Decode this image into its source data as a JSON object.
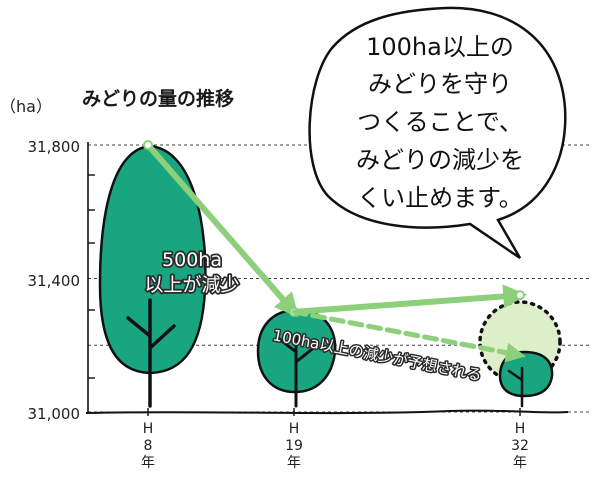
{
  "chart_data": {
    "type": "scatter",
    "title": "みどりの量の推移",
    "unit_label": "（ha）",
    "ylim": [
      31000,
      31800
    ],
    "y_ticks": [
      "31,800",
      "31,400",
      "31,000"
    ],
    "y_tick_values": [
      31800,
      31400,
      31000
    ],
    "grid": "dashed horizontal",
    "categories": [
      {
        "era": "H",
        "num": "8",
        "suffix": "年"
      },
      {
        "era": "H",
        "num": "19",
        "suffix": "年"
      },
      {
        "era": "H",
        "num": "32",
        "suffix": "年"
      }
    ],
    "series": [
      {
        "values": [
          31800,
          31300,
          31350
        ],
        "style": "solid"
      },
      {
        "values": [
          null,
          31300,
          31170
        ],
        "style": "dashed"
      }
    ],
    "annotations": {
      "decrease_500": [
        "500ha",
        "以上が減少"
      ],
      "decrease_100": "100ha以上の減少が予想される",
      "speech_bubble": [
        "100ha以上の",
        "みどりを守り",
        "つくることで、",
        "みどりの減少を",
        "くい止めます。"
      ]
    },
    "colors": {
      "tree_fill": "#1aa581",
      "trend_arrow": "#8dcf7a",
      "target_halo": "#dcefc9",
      "outline": "#111111"
    }
  }
}
